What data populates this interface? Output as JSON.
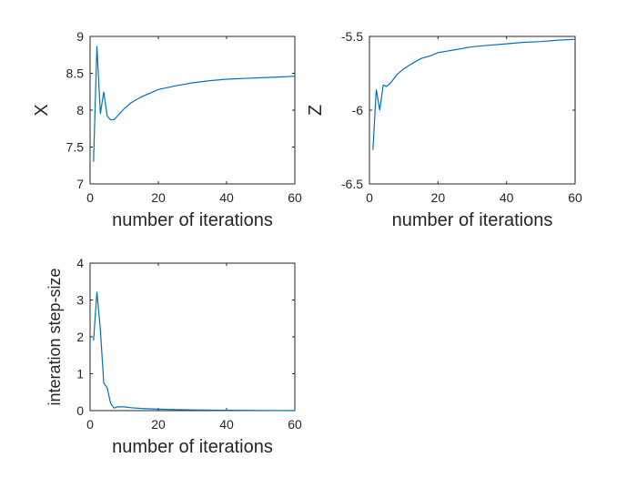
{
  "chart_data": [
    {
      "type": "line",
      "xlabel": "number of iterations",
      "ylabel": "X",
      "xlim": [
        0,
        60
      ],
      "ylim": [
        7,
        9
      ],
      "xticks": [
        0,
        20,
        40,
        60
      ],
      "xtick_labels": [
        "0",
        "20",
        "40",
        "60"
      ],
      "yticks": [
        7,
        7.5,
        8,
        8.5,
        9
      ],
      "ytick_labels": [
        "7",
        "7.5",
        "8",
        "8.5",
        "9"
      ],
      "grid": false,
      "color": "#0072BD",
      "series": [
        {
          "x": [
            1,
            2,
            3,
            4,
            5,
            6,
            7,
            8,
            10,
            12,
            15,
            18,
            20,
            25,
            30,
            35,
            40,
            45,
            50,
            55,
            60
          ],
          "values": [
            7.3,
            8.87,
            7.95,
            8.25,
            7.92,
            7.87,
            7.87,
            7.92,
            8.02,
            8.1,
            8.18,
            8.24,
            8.28,
            8.33,
            8.37,
            8.4,
            8.42,
            8.43,
            8.44,
            8.45,
            8.46
          ]
        }
      ]
    },
    {
      "type": "line",
      "xlabel": "number of iterations",
      "ylabel": "Z",
      "xlim": [
        0,
        60
      ],
      "ylim": [
        -6.5,
        -5.5
      ],
      "xticks": [
        0,
        20,
        40,
        60
      ],
      "xtick_labels": [
        "0",
        "20",
        "40",
        "60"
      ],
      "yticks": [
        -6.5,
        -6,
        -5.5
      ],
      "ytick_labels": [
        "-6.5",
        "-6",
        "-5.5"
      ],
      "grid": false,
      "color": "#0072BD",
      "series": [
        {
          "x": [
            1,
            2,
            3,
            4,
            5,
            6,
            7,
            8,
            10,
            12,
            15,
            18,
            20,
            25,
            30,
            35,
            40,
            45,
            50,
            55,
            60
          ],
          "values": [
            -6.27,
            -5.86,
            -6.0,
            -5.83,
            -5.84,
            -5.82,
            -5.79,
            -5.76,
            -5.72,
            -5.69,
            -5.65,
            -5.63,
            -5.61,
            -5.59,
            -5.57,
            -5.56,
            -5.55,
            -5.54,
            -5.535,
            -5.525,
            -5.52
          ]
        }
      ]
    },
    {
      "type": "line",
      "xlabel": "number of iterations",
      "ylabel": "interation step-size",
      "xlim": [
        0,
        60
      ],
      "ylim": [
        0,
        4
      ],
      "xticks": [
        0,
        20,
        40,
        60
      ],
      "xtick_labels": [
        "0",
        "20",
        "40",
        "60"
      ],
      "yticks": [
        0,
        1,
        2,
        3,
        4
      ],
      "ytick_labels": [
        "0",
        "1",
        "2",
        "3",
        "4"
      ],
      "grid": false,
      "color": "#0072BD",
      "series": [
        {
          "x": [
            1,
            2,
            3,
            4,
            5,
            6,
            7,
            8,
            9,
            10,
            12,
            15,
            20,
            25,
            30,
            40,
            50,
            60
          ],
          "values": [
            1.9,
            3.22,
            2.2,
            0.75,
            0.62,
            0.2,
            0.07,
            0.1,
            0.1,
            0.1,
            0.08,
            0.06,
            0.04,
            0.03,
            0.02,
            0.01,
            0.005,
            0.0
          ]
        }
      ]
    }
  ]
}
